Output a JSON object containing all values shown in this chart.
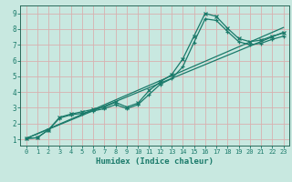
{
  "xlabel": "Humidex (Indice chaleur)",
  "bg_color": "#c8e8e0",
  "grid_color": "#d8b0b0",
  "line_color": "#1a7a6a",
  "spine_color": "#2a6a5a",
  "xlim": [
    -0.5,
    23.5
  ],
  "ylim": [
    0.6,
    9.5
  ],
  "xticks": [
    0,
    1,
    2,
    3,
    4,
    5,
    6,
    7,
    8,
    9,
    10,
    11,
    12,
    13,
    14,
    15,
    16,
    17,
    18,
    19,
    20,
    21,
    22,
    23
  ],
  "yticks": [
    1,
    2,
    3,
    4,
    5,
    6,
    7,
    8,
    9
  ],
  "line1_x": [
    0,
    1,
    2,
    3,
    4,
    5,
    6,
    7,
    8,
    9,
    10,
    11,
    12,
    13,
    14,
    15,
    16,
    17,
    18,
    19,
    20,
    21,
    22,
    23
  ],
  "line1_y": [
    1.05,
    1.1,
    1.6,
    2.4,
    2.6,
    2.75,
    2.9,
    3.05,
    3.35,
    3.05,
    3.3,
    4.1,
    4.65,
    5.1,
    6.1,
    7.55,
    9.0,
    8.8,
    8.05,
    7.4,
    7.2,
    7.3,
    7.55,
    7.75
  ],
  "line2_x": [
    0,
    1,
    2,
    3,
    4,
    5,
    6,
    7,
    8,
    9,
    10,
    11,
    12,
    13,
    14,
    15,
    16,
    17,
    18,
    19,
    20,
    21,
    22,
    23
  ],
  "line2_y": [
    1.05,
    1.1,
    1.6,
    2.35,
    2.55,
    2.65,
    2.8,
    2.95,
    3.2,
    2.95,
    3.2,
    3.85,
    4.5,
    4.85,
    5.6,
    7.15,
    8.65,
    8.55,
    7.85,
    7.2,
    7.0,
    7.1,
    7.35,
    7.55
  ],
  "line3_x": [
    0,
    23
  ],
  "line3_y": [
    1.05,
    7.8
  ],
  "line4_x": [
    0,
    23
  ],
  "line4_y": [
    1.05,
    8.1
  ]
}
